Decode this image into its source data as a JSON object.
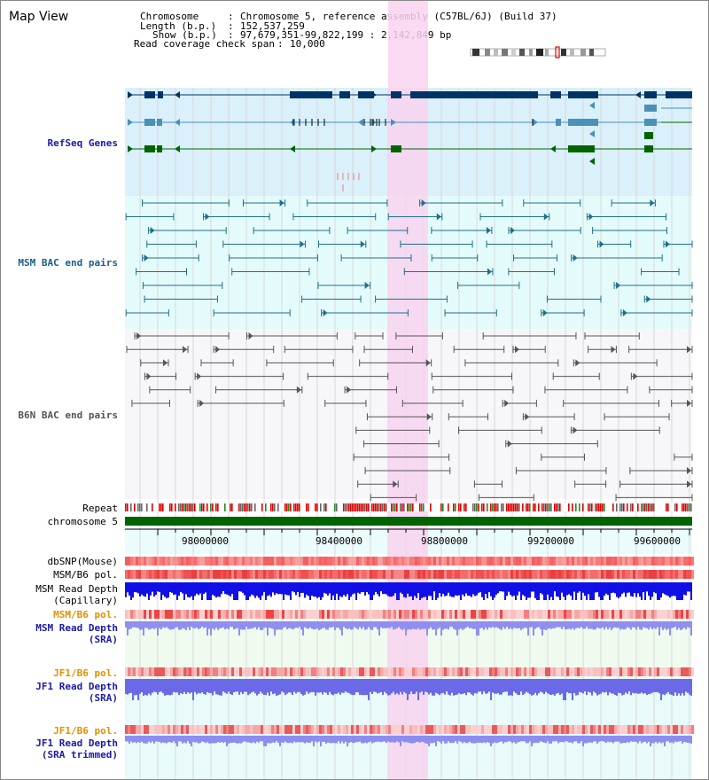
{
  "view": {
    "title": "Map View",
    "header": {
      "chromosome_label": "Chromosome",
      "chromosome_value": "Chromosome 5, reference assembly (C57BL/6J) (Build 37)",
      "length_label": "Length (b.p.)",
      "length_value": "152,537,259",
      "show_label": "Show (b.p.)",
      "show_value": "97,679,351-99,822,199 : 2,142,849 bp",
      "coverage_label": "Read coverage check span",
      "coverage_value": "10,000"
    }
  },
  "tracks": {
    "refseq": {
      "label": "RefSeq Genes",
      "color": "#1a1aaa"
    },
    "msm_bac": {
      "label": "MSM BAC end pairs",
      "color": "#1a5f8a"
    },
    "b6n_bac": {
      "label": "B6N BAC end pairs",
      "color": "#555555"
    },
    "repeat": {
      "label": "Repeat"
    },
    "chromosome": {
      "label": "chromosome 5"
    },
    "dbsnp": {
      "label": "dbSNP(Mouse)"
    },
    "msm_b6_pol1": {
      "label": "MSM/B6 pol."
    },
    "msm_depth_cap": {
      "label1": "MSM Read Depth",
      "label2": "(Capillary)"
    },
    "msm_b6_pol2": {
      "label": "MSM/B6 pol.",
      "color": "#e09000"
    },
    "msm_depth_sra": {
      "label1": "MSM Read Depth",
      "label2": "(SRA)",
      "color": "#1a1aaa"
    },
    "jf1_b6_pol1": {
      "label": "JF1/B6 pol.",
      "color": "#e09000"
    },
    "jf1_depth_sra": {
      "label1": "JF1 Read Depth",
      "label2": "(SRA)",
      "color": "#1a1aaa"
    },
    "jf1_b6_pol2": {
      "label": "JF1/B6 pol.",
      "color": "#e09000"
    },
    "jf1_depth_trim": {
      "label1": "JF1 Read Depth",
      "label2": "(SRA trimmed)",
      "color": "#1a1aaa"
    }
  },
  "axis": {
    "ticks": [
      "98000000",
      "98400000",
      "98800000",
      "99200000",
      "99600000"
    ]
  }
}
